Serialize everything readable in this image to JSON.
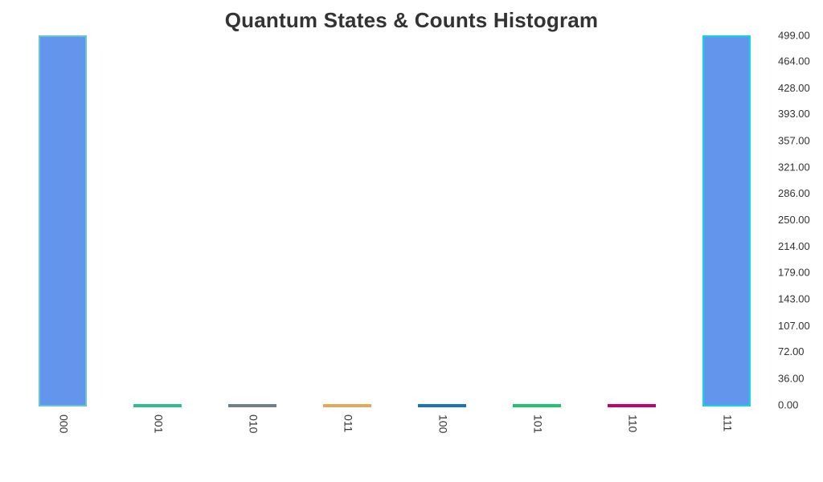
{
  "chart_data": {
    "type": "bar",
    "title": "Quantum States & Counts Histogram",
    "categories": [
      "000",
      "001",
      "010",
      "011",
      "100",
      "101",
      "110",
      "111"
    ],
    "values": [
      499,
      0,
      0,
      0,
      0,
      0,
      0,
      499
    ],
    "bar_fill": "#6495ED",
    "bar_colors": [
      "#69c5cf",
      "#2fbf8f",
      "#6f7f8f",
      "#e8a85a",
      "#1a73c0",
      "#1ec46e",
      "#c7006f",
      "#10d6e6"
    ],
    "ylim": [
      0,
      499
    ],
    "y_ticks": [
      "0.00",
      "36.00",
      "72.00",
      "107.00",
      "143.00",
      "179.00",
      "214.00",
      "250.00",
      "286.00",
      "321.00",
      "357.00",
      "393.00",
      "428.00",
      "464.00",
      "499.00"
    ],
    "y_axis_position": "right",
    "grid": false
  }
}
